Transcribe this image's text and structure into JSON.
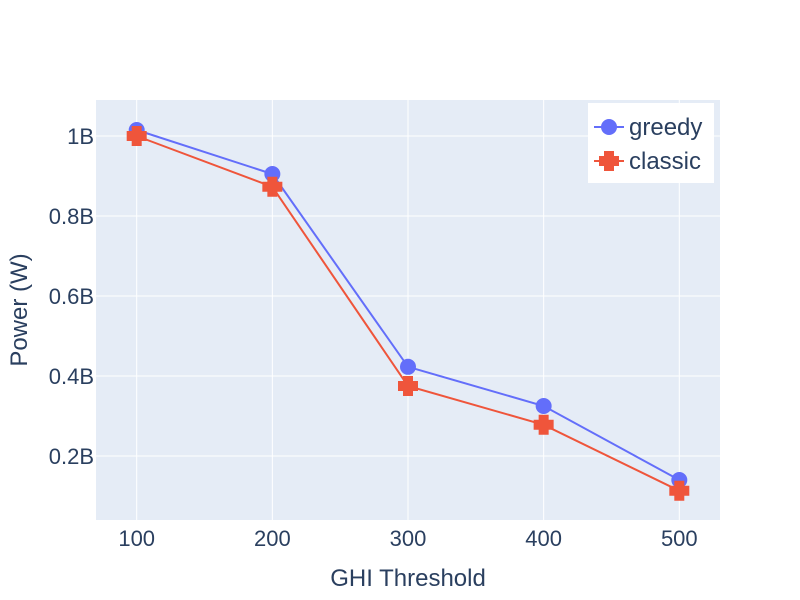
{
  "chart_data": {
    "type": "line",
    "title": "",
    "xlabel": "GHI Threshold",
    "ylabel": "Power (W)",
    "x": [
      100,
      200,
      300,
      400,
      500
    ],
    "x_ticks": [
      100,
      200,
      300,
      400,
      500
    ],
    "x_tick_labels": [
      "100",
      "200",
      "300",
      "400",
      "500"
    ],
    "xlim": [
      70,
      530
    ],
    "y_ticks": [
      200000000,
      400000000,
      600000000,
      800000000,
      1000000000
    ],
    "y_tick_labels": [
      "0.2B",
      "0.4B",
      "0.6B",
      "0.8B",
      "1B"
    ],
    "ylim": [
      40000000,
      1090000000
    ],
    "grid": true,
    "legend_position": "top-right",
    "series": [
      {
        "name": "greedy",
        "marker": "circle",
        "color": "#636efa",
        "values": [
          1015000000,
          905000000,
          423000000,
          325000000,
          140000000
        ]
      },
      {
        "name": "classic",
        "marker": "cross",
        "color": "#ef553b",
        "values": [
          1000000000,
          873000000,
          375000000,
          278000000,
          113000000
        ]
      }
    ]
  }
}
